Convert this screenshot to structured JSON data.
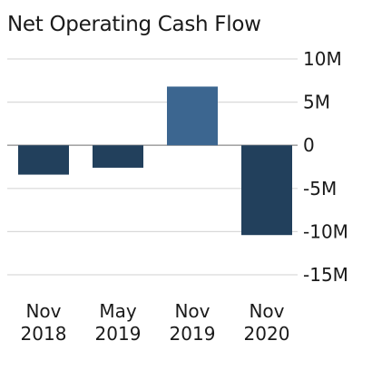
{
  "chart_data": {
    "type": "bar",
    "title": "Net Operating Cash Flow",
    "categories": [
      [
        "Nov",
        "2018"
      ],
      [
        "May",
        "2019"
      ],
      [
        "Nov",
        "2019"
      ],
      [
        "Nov",
        "2020"
      ]
    ],
    "values": [
      -3.4,
      -2.6,
      6.8,
      -10.4
    ],
    "bar_colors": [
      "#22405c",
      "#22405c",
      "#3c6690",
      "#22405c"
    ],
    "yticks": [
      10,
      5,
      0,
      -5,
      -10,
      -15
    ],
    "ytick_labels": [
      "10M",
      "5M",
      "0",
      "-5M",
      "-10M",
      "-15M"
    ],
    "ylim": [
      -15,
      10
    ],
    "unit": "M",
    "grid": true,
    "gridline_color": "#d9d9d9",
    "zero_line_color": "#a6a6a6",
    "xlabel": "",
    "ylabel": ""
  }
}
